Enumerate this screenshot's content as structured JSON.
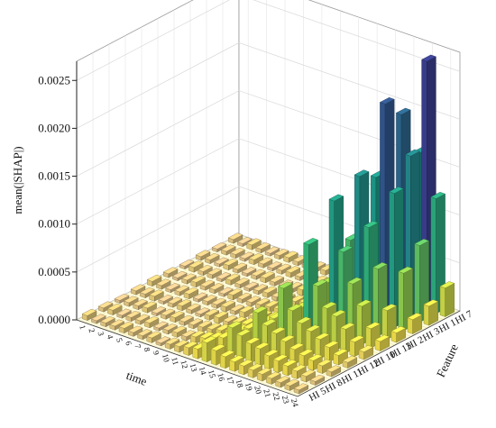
{
  "chart_data": {
    "type": "bar3d",
    "y_label": "mean(|SHAP|)",
    "x_label": "time",
    "z_label": "Feature",
    "categories": [
      "1",
      "2",
      "3",
      "4",
      "5",
      "6",
      "7",
      "8",
      "9",
      "10",
      "11",
      "12",
      "13",
      "14",
      "15",
      "16",
      "17",
      "18",
      "19",
      "20",
      "21",
      "22",
      "23",
      "24"
    ],
    "series": [
      {
        "name": "HI 7",
        "values": [
          4e-05,
          3e-05,
          5e-05,
          4e-05,
          3e-05,
          4e-05,
          5e-05,
          4e-05,
          3e-05,
          4e-05,
          5e-05,
          4e-05,
          6e-05,
          5e-05,
          8e-05,
          0.0001,
          0.00012,
          0.00015,
          0.0004,
          0.0009,
          0.0016,
          0.0026,
          0.0012,
          0.0003
        ]
      },
      {
        "name": "HI 1",
        "values": [
          3e-05,
          4e-05,
          4e-05,
          3e-05,
          5e-05,
          4e-05,
          3e-05,
          4e-05,
          5e-05,
          4e-05,
          3e-05,
          5e-05,
          4e-05,
          6e-05,
          7e-05,
          9e-05,
          0.00011,
          0.00016,
          0.0005,
          0.0012,
          0.0021,
          0.0017,
          0.0008,
          0.0002
        ]
      },
      {
        "name": "HI 3",
        "values": [
          4e-05,
          4e-05,
          3e-05,
          5e-05,
          4e-05,
          3e-05,
          4e-05,
          5e-05,
          4e-05,
          3e-05,
          4e-05,
          6e-05,
          5e-05,
          7e-05,
          9e-05,
          0.00012,
          0.00014,
          0.0003,
          0.0008,
          0.0015,
          0.0023,
          0.0014,
          0.0006,
          0.00015
        ]
      },
      {
        "name": "HI 2",
        "values": [
          3e-05,
          5e-05,
          4e-05,
          4e-05,
          3e-05,
          5e-05,
          4e-05,
          3e-05,
          4e-05,
          5e-05,
          4e-05,
          5e-05,
          6e-05,
          8e-05,
          0.0001,
          0.00013,
          0.0002,
          0.0004,
          0.0009,
          0.0016,
          0.0011,
          0.0007,
          0.0003,
          0.0001
        ]
      },
      {
        "name": "HI 13",
        "values": [
          4e-05,
          3e-05,
          4e-05,
          5e-05,
          4e-05,
          4e-05,
          3e-05,
          5e-05,
          4e-05,
          4e-05,
          5e-05,
          6e-05,
          7e-05,
          9e-05,
          0.00012,
          0.00018,
          0.00025,
          0.0005,
          0.0014,
          0.0009,
          0.0006,
          0.0004,
          0.0002,
          0.0001
        ]
      },
      {
        "name": "HI 10",
        "values": [
          5e-05,
          4e-05,
          3e-05,
          4e-05,
          5e-05,
          3e-05,
          4e-05,
          4e-05,
          5e-05,
          4e-05,
          6e-05,
          5e-05,
          8e-05,
          0.0001,
          0.00014,
          0.0002,
          0.0003,
          0.001,
          0.0006,
          0.0004,
          0.00035,
          0.00025,
          0.00015,
          8e-05
        ]
      },
      {
        "name": "HI 12",
        "values": [
          4e-05,
          4e-05,
          5e-05,
          3e-05,
          4e-05,
          5e-05,
          4e-05,
          3e-05,
          5e-05,
          6e-05,
          5e-05,
          7e-05,
          9e-05,
          0.00012,
          0.00018,
          0.00025,
          0.0006,
          0.0004,
          0.0003,
          0.00025,
          0.0002,
          0.00015,
          0.0001,
          6e-05
        ]
      },
      {
        "name": "HI 11",
        "values": [
          3e-05,
          4e-05,
          4e-05,
          5e-05,
          3e-05,
          4e-05,
          5e-05,
          4e-05,
          4e-05,
          5e-05,
          6e-05,
          8e-05,
          0.0001,
          0.00014,
          0.0002,
          0.0004,
          0.0003,
          0.00025,
          0.0002,
          0.00015,
          0.00012,
          0.0001,
          8e-05,
          5e-05
        ]
      },
      {
        "name": "HI 8",
        "values": [
          4e-05,
          5e-05,
          3e-05,
          4e-05,
          4e-05,
          5e-05,
          3e-05,
          4e-05,
          5e-05,
          4e-05,
          7e-05,
          9e-05,
          0.00012,
          0.00016,
          0.0003,
          0.00025,
          0.0002,
          0.00018,
          0.00014,
          0.00012,
          0.0001,
          8e-05,
          6e-05,
          4e-05
        ]
      },
      {
        "name": "HI 5",
        "values": [
          5e-05,
          3e-05,
          4e-05,
          4e-05,
          5e-05,
          4e-05,
          4e-05,
          5e-05,
          3e-05,
          5e-05,
          6e-05,
          8e-05,
          0.0001,
          0.0002,
          0.00015,
          0.00012,
          0.0001,
          9e-05,
          8e-05,
          7e-05,
          6e-05,
          5e-05,
          5e-05,
          4e-05
        ]
      }
    ],
    "ylim": [
      0,
      0.0027
    ],
    "yticks": [
      {
        "value": 0,
        "label": "0.0000"
      },
      {
        "value": 0.0005,
        "label": "0.0005"
      },
      {
        "value": 0.001,
        "label": "0.0010"
      },
      {
        "value": 0.0015,
        "label": "0.0015"
      },
      {
        "value": 0.002,
        "label": "0.0020"
      },
      {
        "value": 0.0025,
        "label": "0.0025"
      }
    ],
    "grid": true,
    "colorscale": [
      [
        0,
        "#dcb8a8"
      ],
      [
        0.0001,
        "#f2e04c"
      ],
      [
        0.0005,
        "#a8d545"
      ],
      [
        0.001,
        "#35b779"
      ],
      [
        0.0015,
        "#1f9a8a"
      ],
      [
        0.002,
        "#2a6f8e"
      ],
      [
        0.0026,
        "#3b3f8f"
      ]
    ]
  }
}
